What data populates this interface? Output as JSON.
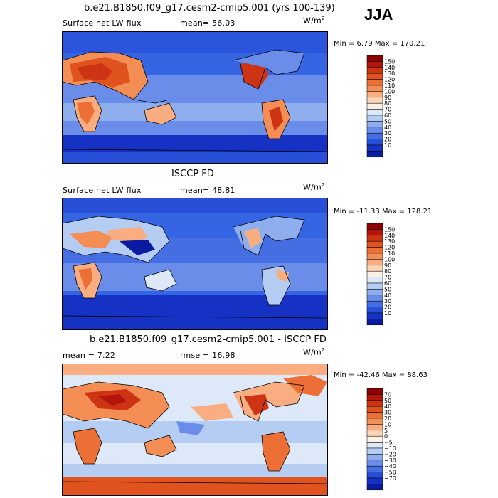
{
  "season": "JJA",
  "panels": [
    {
      "title": "b.e21.B1850.f09_g17.cesm2-cmip5.001 (yrs 100-139)",
      "left_label": "Surface net LW flux",
      "mid_label": "mean=  56.03",
      "units": "W/m",
      "units_sup": "2",
      "minmax": "Min =    6.79 Max = 170.21"
    },
    {
      "title": "ISCCP FD",
      "left_label": "Surface net LW flux",
      "mid_label": "mean=  48.81",
      "units": "W/m",
      "units_sup": "2",
      "minmax": "Min = -11.33 Max = 128.21"
    },
    {
      "title": "b.e21.B1850.f09_g17.cesm2-cmip5.001 - ISCCP FD",
      "left_label": "mean =    7.22",
      "mid_label": "rmse =   16.98",
      "units": "W/m",
      "units_sup": "2",
      "minmax": "Min = -42.46 Max =  88.63"
    }
  ],
  "chart_data": [
    {
      "type": "heatmap",
      "title": "b.e21.B1850.f09_g17.cesm2-cmip5.001 (yrs 100-139)",
      "variable": "Surface net LW flux",
      "units": "W/m2",
      "mean": 56.03,
      "min": 6.79,
      "max": 170.21,
      "colorbar_levels": [
        "150",
        "140",
        "130",
        "120",
        "110",
        "100",
        "90",
        "80",
        "70",
        "60",
        "50",
        "40",
        "30",
        "20",
        "10"
      ],
      "colorbar_colors": [
        "#8b0000",
        "#b2150c",
        "#cc3414",
        "#e0521e",
        "#ec6f35",
        "#f58e55",
        "#f9ad80",
        "#fcd4b6",
        "#fbf0e3",
        "#dde9f9",
        "#b6cdf3",
        "#8eaeee",
        "#6a8de9",
        "#456ee2",
        "#274fd8",
        "#1532c4",
        "#0a1ba0"
      ]
    },
    {
      "type": "heatmap",
      "title": "ISCCP FD",
      "variable": "Surface net LW flux",
      "units": "W/m2",
      "mean": 48.81,
      "min": -11.33,
      "max": 128.21,
      "colorbar_levels": [
        "150",
        "140",
        "130",
        "120",
        "110",
        "100",
        "90",
        "80",
        "70",
        "60",
        "50",
        "40",
        "30",
        "20",
        "10"
      ],
      "colorbar_colors": [
        "#8b0000",
        "#b2150c",
        "#cc3414",
        "#e0521e",
        "#ec6f35",
        "#f58e55",
        "#f9ad80",
        "#fcd4b6",
        "#fbf0e3",
        "#dde9f9",
        "#b6cdf3",
        "#8eaeee",
        "#6a8de9",
        "#456ee2",
        "#274fd8",
        "#1532c4",
        "#0a1ba0"
      ]
    },
    {
      "type": "heatmap",
      "title": "b.e21.B1850.f09_g17.cesm2-cmip5.001 - ISCCP FD",
      "units": "W/m2",
      "mean": 7.22,
      "rmse": 16.98,
      "min": -42.46,
      "max": 88.63,
      "colorbar_levels": [
        "70",
        "50",
        "40",
        "30",
        "20",
        "10",
        "5",
        "0",
        "−5",
        "−10",
        "−20",
        "−30",
        "−40",
        "−50",
        "−70"
      ],
      "colorbar_colors": [
        "#8b0000",
        "#b2150c",
        "#cc3414",
        "#e0521e",
        "#ec6f35",
        "#f58e55",
        "#f9ad80",
        "#fcd4b6",
        "#fbf0e3",
        "#dde9f9",
        "#b6cdf3",
        "#8eaeee",
        "#6a8de9",
        "#456ee2",
        "#274fd8",
        "#1532c4",
        "#0a1ba0"
      ]
    }
  ]
}
